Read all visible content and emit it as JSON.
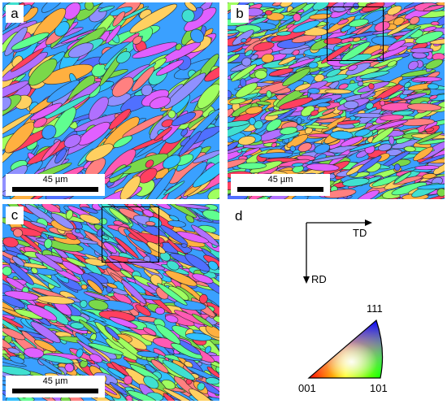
{
  "panels": {
    "a": {
      "label": "a",
      "scale": "45 µm"
    },
    "b": {
      "label": "b",
      "scale": "45 µm"
    },
    "c": {
      "label": "c",
      "scale": "45 µm"
    },
    "d": {
      "label": "d"
    }
  },
  "legend": {
    "td": "TD",
    "rd": "RD",
    "corner_111": "111",
    "corner_001": "001",
    "corner_101": "101"
  },
  "colors": {
    "red_001": "#ff0000",
    "green_101": "#00ff00",
    "blue_111": "#0000ff"
  }
}
